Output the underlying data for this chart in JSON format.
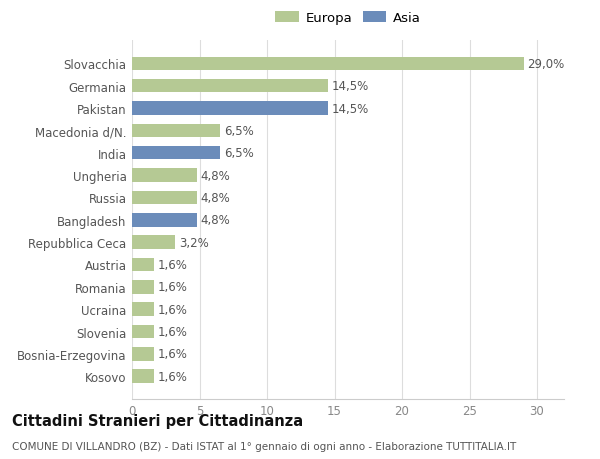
{
  "categories": [
    "Kosovo",
    "Bosnia-Erzegovina",
    "Slovenia",
    "Ucraina",
    "Romania",
    "Austria",
    "Repubblica Ceca",
    "Bangladesh",
    "Russia",
    "Ungheria",
    "India",
    "Macedonia d/N.",
    "Pakistan",
    "Germania",
    "Slovacchia"
  ],
  "values": [
    1.6,
    1.6,
    1.6,
    1.6,
    1.6,
    1.6,
    3.2,
    4.8,
    4.8,
    4.8,
    6.5,
    6.5,
    14.5,
    14.5,
    29.0
  ],
  "continent": [
    "Europa",
    "Europa",
    "Europa",
    "Europa",
    "Europa",
    "Europa",
    "Europa",
    "Asia",
    "Europa",
    "Europa",
    "Asia",
    "Europa",
    "Asia",
    "Europa",
    "Europa"
  ],
  "labels": [
    "1,6%",
    "1,6%",
    "1,6%",
    "1,6%",
    "1,6%",
    "1,6%",
    "3,2%",
    "4,8%",
    "4,8%",
    "4,8%",
    "6,5%",
    "6,5%",
    "14,5%",
    "14,5%",
    "29,0%"
  ],
  "europa_color": "#b5c994",
  "asia_color": "#6b8cba",
  "background_color": "#ffffff",
  "plot_bg_color": "#ffffff",
  "title": "Cittadini Stranieri per Cittadinanza",
  "subtitle": "COMUNE DI VILLANDRO (BZ) - Dati ISTAT al 1° gennaio di ogni anno - Elaborazione TUTTITALIA.IT",
  "xlim": [
    0,
    32
  ],
  "xticks": [
    0,
    5,
    10,
    15,
    20,
    25,
    30
  ],
  "bar_height": 0.6,
  "legend_europa": "Europa",
  "legend_asia": "Asia",
  "label_fontsize": 8.5,
  "tick_fontsize": 8.5,
  "title_fontsize": 10.5,
  "subtitle_fontsize": 7.5
}
